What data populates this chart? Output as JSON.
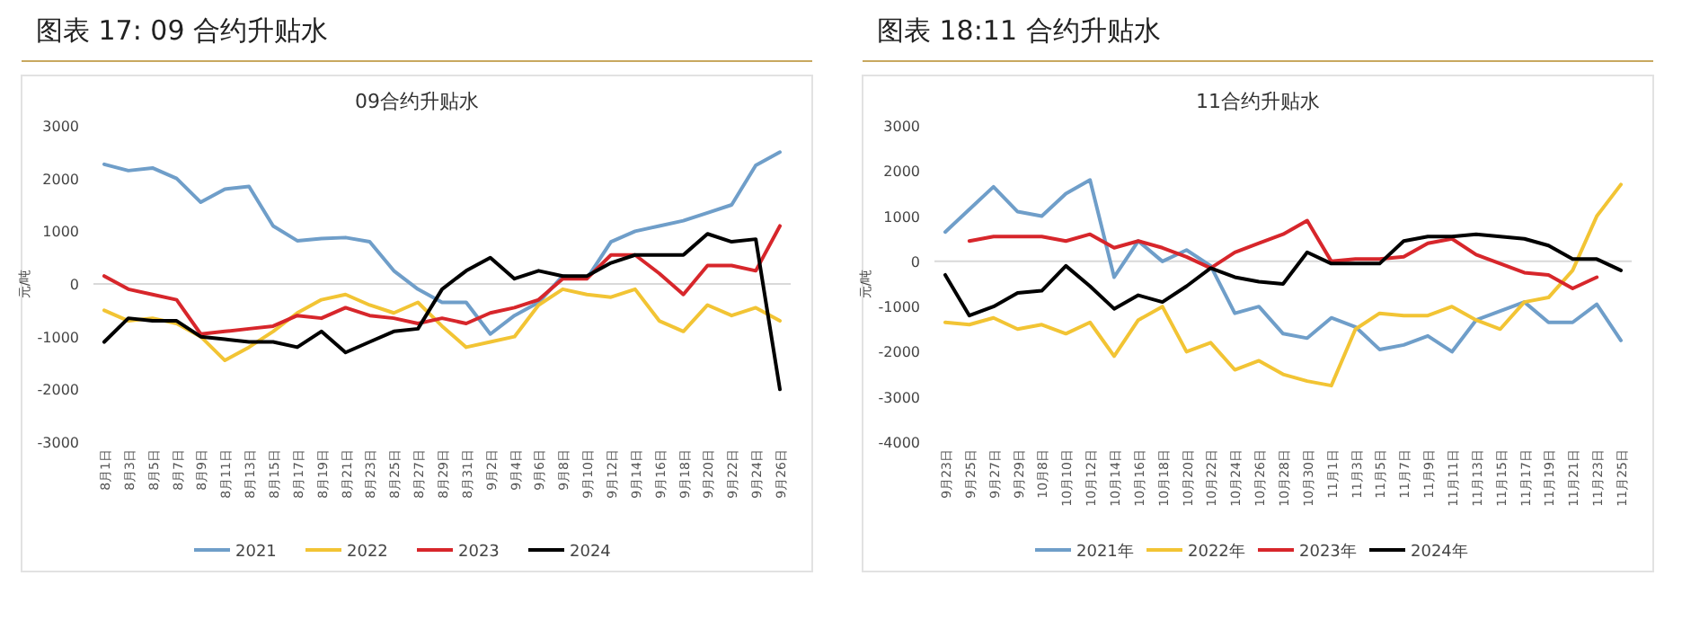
{
  "chart_data": [
    {
      "type": "line",
      "title": "图表 17: 09 合约升贴水",
      "subtitle": "09合约升贴水",
      "ylabel": "元/吨",
      "categories": [
        "8月1日",
        "8月3日",
        "8月5日",
        "8月7日",
        "8月9日",
        "8月11日",
        "8月13日",
        "8月15日",
        "8月17日",
        "8月19日",
        "8月21日",
        "8月23日",
        "8月25日",
        "8月27日",
        "8月29日",
        "8月31日",
        "9月2日",
        "9月4日",
        "9月6日",
        "9月8日",
        "9月10日",
        "9月12日",
        "9月14日",
        "9月16日",
        "9月18日",
        "9月20日",
        "9月22日",
        "9月24日",
        "9月26日"
      ],
      "series": [
        {
          "name": "2021",
          "color": "#6f9ec9",
          "values": [
            2270,
            2150,
            2200,
            2000,
            1550,
            1800,
            1850,
            1100,
            820,
            860,
            880,
            800,
            250,
            -100,
            -350,
            -350,
            -950,
            -600,
            -350,
            150,
            100,
            800,
            1000,
            1100,
            1200,
            1350,
            1500,
            2250,
            2500
          ]
        },
        {
          "name": "2022",
          "color": "#f2c434",
          "values": [
            -500,
            -700,
            -650,
            -750,
            -1000,
            -1450,
            -1200,
            -900,
            -550,
            -300,
            -200,
            -400,
            -550,
            -350,
            -800,
            -1200,
            -1100,
            -1000,
            -400,
            -100,
            -200,
            -250,
            -100,
            -700,
            -900,
            -400,
            -600,
            -450,
            -700
          ]
        },
        {
          "name": "2023",
          "color": "#d7262b",
          "values": [
            150,
            -100,
            -200,
            -300,
            -950,
            -900,
            -850,
            -800,
            -600,
            -650,
            -450,
            -600,
            -650,
            -750,
            -650,
            -750,
            -550,
            -450,
            -300,
            100,
            100,
            550,
            550,
            200,
            -200,
            350,
            350,
            250,
            1100
          ]
        },
        {
          "name": "2024",
          "color": "#000000",
          "values": [
            -1100,
            -650,
            -700,
            -700,
            -1000,
            -1050,
            -1100,
            -1100,
            -1200,
            -900,
            -1300,
            -1100,
            -900,
            -850,
            -100,
            250,
            500,
            100,
            250,
            150,
            150,
            400,
            550,
            550,
            550,
            950,
            800,
            850,
            -2000
          ]
        }
      ],
      "ylim": [
        -3000,
        3000
      ],
      "yticks": [
        -3000,
        -2000,
        -1000,
        0,
        1000,
        2000,
        3000
      ],
      "legend": "bottom"
    },
    {
      "type": "line",
      "title": "图表 18:11 合约升贴水",
      "subtitle": "11合约升贴水",
      "ylabel": "元/吨",
      "categories": [
        "9月23日",
        "9月25日",
        "9月27日",
        "9月29日",
        "10月8日",
        "10月10日",
        "10月12日",
        "10月14日",
        "10月16日",
        "10月18日",
        "10月20日",
        "10月22日",
        "10月24日",
        "10月26日",
        "10月28日",
        "10月30日",
        "11月1日",
        "11月3日",
        "11月5日",
        "11月7日",
        "11月9日",
        "11月11日",
        "11月13日",
        "11月15日",
        "11月17日",
        "11月19日",
        "11月21日",
        "11月23日",
        "11月25日"
      ],
      "series": [
        {
          "name": "2021年",
          "color": "#6f9ec9",
          "values": [
            650,
            1150,
            1650,
            1100,
            1000,
            1500,
            1800,
            -350,
            450,
            0,
            250,
            -100,
            -1150,
            -1000,
            -1600,
            -1700,
            -1250,
            -1450,
            -1950,
            -1850,
            -1650,
            -2000,
            -1300,
            -1100,
            -900,
            -1350,
            -1350,
            -950,
            -1750
          ]
        },
        {
          "name": "2022年",
          "color": "#f2c434",
          "values": [
            -1350,
            -1400,
            -1250,
            -1500,
            -1400,
            -1600,
            -1350,
            -2100,
            -1300,
            -1000,
            -2000,
            -1800,
            -2400,
            -2200,
            -2500,
            -2650,
            -2750,
            -1500,
            -1150,
            -1200,
            -1200,
            -1000,
            -1300,
            -1500,
            -900,
            -800,
            -200,
            1000,
            1700
          ]
        },
        {
          "name": "2023年",
          "color": "#d7262b",
          "values": [
            null,
            450,
            550,
            550,
            550,
            450,
            600,
            300,
            450,
            300,
            100,
            -150,
            200,
            400,
            600,
            900,
            0,
            50,
            50,
            100,
            400,
            500,
            150,
            -50,
            -250,
            -300,
            -600,
            -350,
            null
          ]
        },
        {
          "name": "2024年",
          "color": "#000000",
          "values": [
            -300,
            -1200,
            -1000,
            -700,
            -650,
            -100,
            -550,
            -1050,
            -750,
            -900,
            -550,
            -150,
            -350,
            -450,
            -500,
            200,
            -50,
            -50,
            -50,
            450,
            550,
            550,
            600,
            550,
            500,
            350,
            50,
            50,
            -200
          ]
        }
      ],
      "ylim": [
        -4000,
        3000
      ],
      "yticks": [
        -4000,
        -3000,
        -2000,
        -1000,
        0,
        1000,
        2000,
        3000
      ],
      "legend": "bottom"
    }
  ]
}
